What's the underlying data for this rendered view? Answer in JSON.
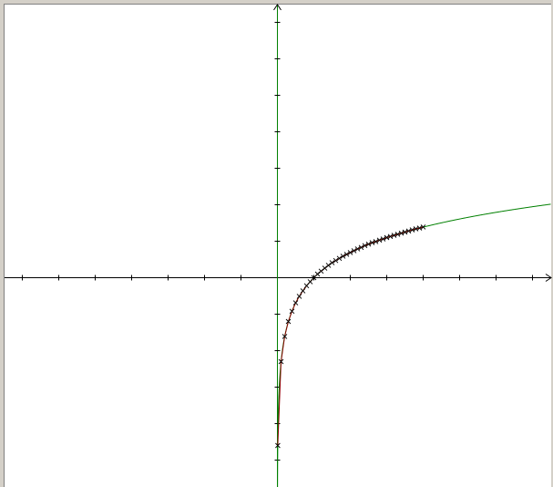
{
  "chart_data": {
    "type": "line",
    "title": "",
    "xlabel": "",
    "ylabel": "",
    "xlim": [
      -7.5,
      7.5
    ],
    "ylim": [
      -5.75,
      7.5
    ],
    "xticks_step": 1,
    "yticks_step": 1,
    "grid": false,
    "colors": {
      "axes": "#000000",
      "y_axis": "#008000",
      "curve": "#008000",
      "fit_line": "#8b0000",
      "markers": "#000000",
      "background": "#ffffff",
      "frame": "#d4d0c8"
    },
    "series": [
      {
        "kind": "function",
        "expression": "ln(x)",
        "color": "#008000",
        "x_range": [
          0.002,
          7.5
        ]
      },
      {
        "kind": "points",
        "marker": "x",
        "color": "#000000",
        "line_color": "#8b0000",
        "points": [
          [
            0.01,
            -4.6
          ],
          [
            0.1,
            -2.3
          ],
          [
            0.2,
            -1.61
          ],
          [
            0.3,
            -1.2
          ],
          [
            0.4,
            -0.92
          ],
          [
            0.5,
            -0.69
          ],
          [
            0.6,
            -0.51
          ],
          [
            0.7,
            -0.36
          ],
          [
            0.8,
            -0.22
          ],
          [
            0.9,
            -0.11
          ],
          [
            1.0,
            0.0
          ],
          [
            1.1,
            0.1
          ],
          [
            1.2,
            0.18
          ],
          [
            1.3,
            0.26
          ],
          [
            1.4,
            0.34
          ],
          [
            1.5,
            0.41
          ],
          [
            1.6,
            0.47
          ],
          [
            1.7,
            0.53
          ],
          [
            1.8,
            0.59
          ],
          [
            1.9,
            0.64
          ],
          [
            2.0,
            0.69
          ],
          [
            2.1,
            0.74
          ],
          [
            2.2,
            0.79
          ],
          [
            2.3,
            0.83
          ],
          [
            2.4,
            0.88
          ],
          [
            2.5,
            0.92
          ],
          [
            2.6,
            0.96
          ],
          [
            2.7,
            0.99
          ],
          [
            2.8,
            1.03
          ],
          [
            2.9,
            1.06
          ],
          [
            3.0,
            1.1
          ],
          [
            3.1,
            1.13
          ],
          [
            3.2,
            1.16
          ],
          [
            3.3,
            1.19
          ],
          [
            3.4,
            1.22
          ],
          [
            3.5,
            1.25
          ],
          [
            3.6,
            1.28
          ],
          [
            3.7,
            1.31
          ],
          [
            3.8,
            1.34
          ],
          [
            3.9,
            1.36
          ],
          [
            4.0,
            1.39
          ]
        ]
      }
    ]
  }
}
